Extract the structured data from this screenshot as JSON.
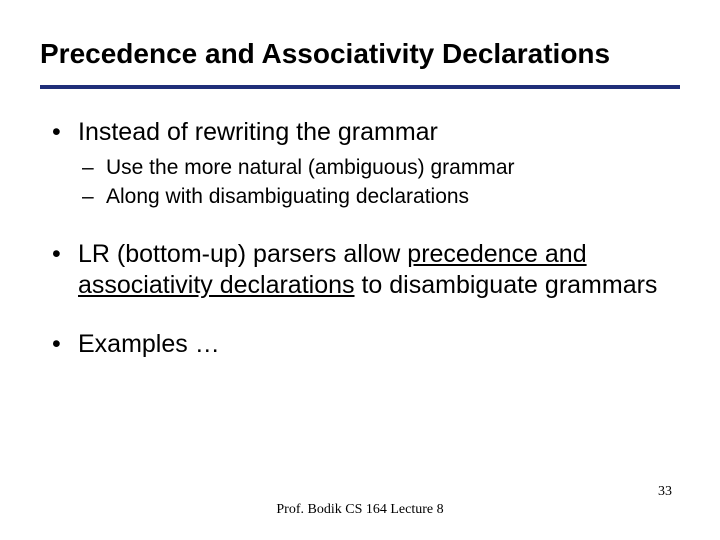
{
  "title": "Precedence and Associativity Declarations",
  "rule_color": "#1f2e79",
  "bullets": [
    {
      "text": "Instead of rewriting the grammar",
      "sub": [
        "Use the more natural (ambiguous) grammar",
        "Along with disambiguating declarations"
      ]
    },
    {
      "segments": [
        {
          "t": "LR (bottom-up) parsers allow "
        },
        {
          "t": "precedence and associativity declarations",
          "u": true
        },
        {
          "t": " to disambiguate grammars"
        }
      ]
    },
    {
      "text": "Examples …"
    }
  ],
  "footer": "Prof. Bodik  CS 164  Lecture 8",
  "page_number": "33"
}
